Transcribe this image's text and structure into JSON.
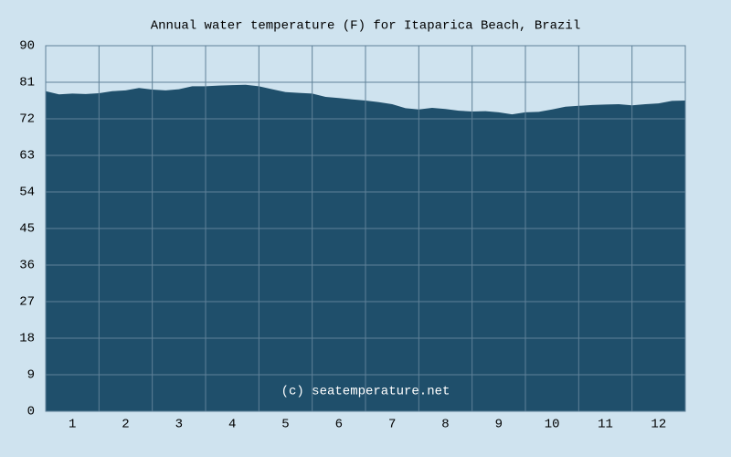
{
  "chart_data": {
    "type": "area",
    "title": "Annual water temperature (F) for Itaparica Beach, Brazil",
    "watermark": "(c) seatemperature.net",
    "color": "#1f4f6b",
    "x": [
      0,
      0.25,
      0.5,
      0.75,
      1,
      1.25,
      1.5,
      1.75,
      2,
      2.25,
      2.5,
      2.75,
      3,
      3.25,
      3.5,
      3.75,
      4,
      4.25,
      4.5,
      4.75,
      5,
      5.25,
      5.5,
      5.75,
      6,
      6.25,
      6.5,
      6.75,
      7,
      7.25,
      7.5,
      7.75,
      8,
      8.25,
      8.5,
      8.75,
      9,
      9.25,
      9.5,
      9.75,
      10,
      10.25,
      10.5,
      10.75,
      11,
      11.25,
      11.5,
      11.75,
      12
    ],
    "values": [
      78.8,
      78.0,
      78.2,
      78.1,
      78.3,
      78.8,
      79.0,
      79.6,
      79.2,
      79.0,
      79.3,
      80.0,
      80.0,
      80.2,
      80.3,
      80.4,
      80.0,
      79.3,
      78.6,
      78.4,
      78.2,
      77.4,
      77.1,
      76.8,
      76.5,
      76.1,
      75.6,
      74.6,
      74.3,
      74.7,
      74.4,
      74.0,
      73.8,
      73.9,
      73.6,
      73.1,
      73.6,
      73.7,
      74.3,
      75.0,
      75.2,
      75.4,
      75.5,
      75.6,
      75.3,
      75.6,
      75.8,
      76.4,
      76.5
    ],
    "xlim": [
      0,
      12
    ],
    "xticks": [
      {
        "value": 0.5,
        "label": "1"
      },
      {
        "value": 1.5,
        "label": "2"
      },
      {
        "value": 2.5,
        "label": "3"
      },
      {
        "value": 3.5,
        "label": "4"
      },
      {
        "value": 4.5,
        "label": "5"
      },
      {
        "value": 5.5,
        "label": "6"
      },
      {
        "value": 6.5,
        "label": "7"
      },
      {
        "value": 7.5,
        "label": "8"
      },
      {
        "value": 8.5,
        "label": "9"
      },
      {
        "value": 9.5,
        "label": "10"
      },
      {
        "value": 10.5,
        "label": "11"
      },
      {
        "value": 11.5,
        "label": "12"
      }
    ],
    "ylim": [
      0,
      90
    ],
    "yticks": [
      0,
      9,
      18,
      27,
      36,
      45,
      54,
      63,
      72,
      81,
      90
    ],
    "grid": true
  }
}
